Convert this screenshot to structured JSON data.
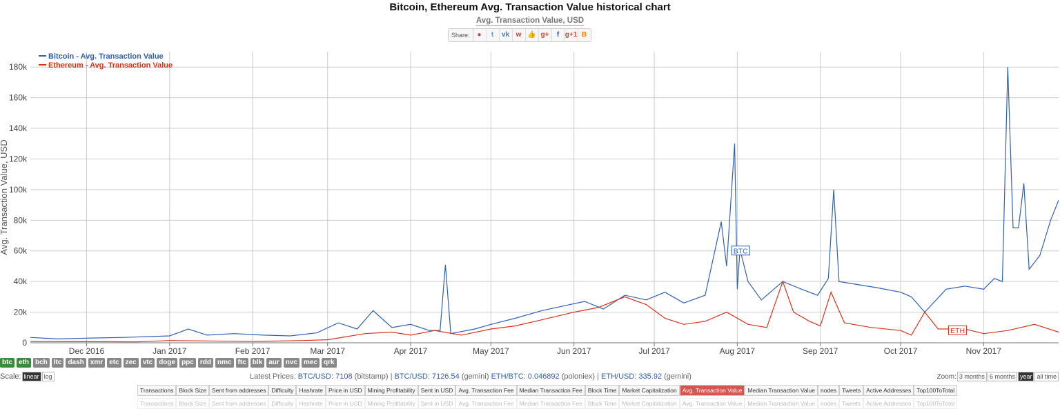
{
  "header": {
    "title": "Bitcoin, Ethereum Avg. Transaction Value historical chart",
    "subtitle": "Avg. Transaction Value, USD",
    "share_label": "Share:",
    "share_icons": [
      "reddit-icon",
      "twitter-icon",
      "vk-icon",
      "weibo-icon",
      "like-icon",
      "google-plus-icon",
      "facebook-icon",
      "google-plus-one-icon",
      "blogger-icon"
    ],
    "share_glyphs": [
      "●",
      "t",
      "vk",
      "w",
      "👍",
      "g+",
      "f",
      "g+1",
      "B"
    ]
  },
  "chart_data": {
    "type": "line",
    "title": "Bitcoin, Ethereum Avg. Transaction Value historical chart",
    "ylabel": "Avg. Transaction Value, USD",
    "ylim": [
      0,
      190000
    ],
    "xlim": [
      "2016-11-10",
      "2017-11-29"
    ],
    "yticks": [
      0,
      20000,
      40000,
      60000,
      80000,
      100000,
      120000,
      140000,
      160000,
      180000
    ],
    "ytick_labels": [
      "0",
      "20k",
      "40k",
      "60k",
      "80k",
      "100k",
      "120k",
      "140k",
      "160k",
      "180k"
    ],
    "xticks": [
      "2016-12-01",
      "2017-01-01",
      "2017-02-01",
      "2017-03-01",
      "2017-04-01",
      "2017-05-01",
      "2017-06-01",
      "2017-07-01",
      "2017-08-01",
      "2017-09-01",
      "2017-10-01",
      "2017-11-01"
    ],
    "xtick_labels": [
      "Dec 2016",
      "Jan 2017",
      "Feb 2017",
      "Mar 2017",
      "Apr 2017",
      "May 2017",
      "Jun 2017",
      "Jul 2017",
      "Aug 2017",
      "Sep 2017",
      "Oct 2017",
      "Nov 2017"
    ],
    "grid": true,
    "legend_position": "top-left",
    "series": [
      {
        "name": "Bitcoin - Avg. Transaction Value",
        "label": "BTC",
        "color": "#2f5fb3",
        "points": [
          [
            "2016-11-10",
            3500
          ],
          [
            "2016-11-20",
            2500
          ],
          [
            "2016-12-01",
            3000
          ],
          [
            "2016-12-15",
            3500
          ],
          [
            "2017-01-01",
            4500
          ],
          [
            "2017-01-08",
            9000
          ],
          [
            "2017-01-15",
            5000
          ],
          [
            "2017-01-25",
            6000
          ],
          [
            "2017-02-05",
            5000
          ],
          [
            "2017-02-15",
            4500
          ],
          [
            "2017-02-25",
            6500
          ],
          [
            "2017-03-05",
            13000
          ],
          [
            "2017-03-12",
            9000
          ],
          [
            "2017-03-18",
            21000
          ],
          [
            "2017-03-25",
            10000
          ],
          [
            "2017-04-01",
            12000
          ],
          [
            "2017-04-08",
            8000
          ],
          [
            "2017-04-12",
            8000
          ],
          [
            "2017-04-14",
            51000
          ],
          [
            "2017-04-16",
            6000
          ],
          [
            "2017-04-25",
            9000
          ],
          [
            "2017-05-01",
            12000
          ],
          [
            "2017-05-10",
            16000
          ],
          [
            "2017-05-20",
            21000
          ],
          [
            "2017-05-28",
            24000
          ],
          [
            "2017-06-05",
            27000
          ],
          [
            "2017-06-12",
            22000
          ],
          [
            "2017-06-20",
            31000
          ],
          [
            "2017-06-28",
            28000
          ],
          [
            "2017-07-05",
            33000
          ],
          [
            "2017-07-12",
            26000
          ],
          [
            "2017-07-20",
            31000
          ],
          [
            "2017-07-26",
            79000
          ],
          [
            "2017-07-28",
            50000
          ],
          [
            "2017-07-31",
            130000
          ],
          [
            "2017-08-01",
            35000
          ],
          [
            "2017-08-02",
            61000
          ],
          [
            "2017-08-05",
            40000
          ],
          [
            "2017-08-10",
            28000
          ],
          [
            "2017-08-18",
            40000
          ],
          [
            "2017-08-25",
            35000
          ],
          [
            "2017-08-31",
            31000
          ],
          [
            "2017-09-04",
            42000
          ],
          [
            "2017-09-06",
            100000
          ],
          [
            "2017-09-08",
            40000
          ],
          [
            "2017-09-15",
            38000
          ],
          [
            "2017-09-22",
            36000
          ],
          [
            "2017-10-01",
            33000
          ],
          [
            "2017-10-05",
            30000
          ],
          [
            "2017-10-10",
            20000
          ],
          [
            "2017-10-18",
            35000
          ],
          [
            "2017-10-25",
            37000
          ],
          [
            "2017-11-01",
            35000
          ],
          [
            "2017-11-05",
            42000
          ],
          [
            "2017-11-08",
            40000
          ],
          [
            "2017-11-10",
            180000
          ],
          [
            "2017-11-12",
            75000
          ],
          [
            "2017-11-14",
            75000
          ],
          [
            "2017-11-16",
            104000
          ],
          [
            "2017-11-18",
            48000
          ],
          [
            "2017-11-22",
            57000
          ],
          [
            "2017-11-26",
            80000
          ],
          [
            "2017-11-29",
            93000
          ]
        ]
      },
      {
        "name": "Ethereum - Avg. Transaction Value",
        "label": "ETH",
        "color": "#d9301c",
        "points": [
          [
            "2016-11-10",
            800
          ],
          [
            "2016-12-01",
            700
          ],
          [
            "2016-12-20",
            600
          ],
          [
            "2017-01-01",
            1500
          ],
          [
            "2017-01-15",
            1200
          ],
          [
            "2017-02-01",
            800
          ],
          [
            "2017-02-20",
            1500
          ],
          [
            "2017-03-01",
            2000
          ],
          [
            "2017-03-15",
            6000
          ],
          [
            "2017-03-25",
            7000
          ],
          [
            "2017-04-01",
            5000
          ],
          [
            "2017-04-10",
            8000
          ],
          [
            "2017-04-20",
            5000
          ],
          [
            "2017-05-01",
            9000
          ],
          [
            "2017-05-10",
            11000
          ],
          [
            "2017-05-20",
            15000
          ],
          [
            "2017-06-01",
            20000
          ],
          [
            "2017-06-10",
            23000
          ],
          [
            "2017-06-20",
            30000
          ],
          [
            "2017-06-28",
            25000
          ],
          [
            "2017-07-05",
            16000
          ],
          [
            "2017-07-12",
            12000
          ],
          [
            "2017-07-20",
            14000
          ],
          [
            "2017-07-28",
            20000
          ],
          [
            "2017-08-05",
            12000
          ],
          [
            "2017-08-12",
            10000
          ],
          [
            "2017-08-18",
            40000
          ],
          [
            "2017-08-22",
            20000
          ],
          [
            "2017-08-28",
            14000
          ],
          [
            "2017-09-01",
            11000
          ],
          [
            "2017-09-05",
            33000
          ],
          [
            "2017-09-10",
            13000
          ],
          [
            "2017-09-20",
            10000
          ],
          [
            "2017-10-01",
            8000
          ],
          [
            "2017-10-05",
            5000
          ],
          [
            "2017-10-10",
            20000
          ],
          [
            "2017-10-15",
            9000
          ],
          [
            "2017-10-25",
            9000
          ],
          [
            "2017-11-01",
            6000
          ],
          [
            "2017-11-10",
            8000
          ],
          [
            "2017-11-20",
            12000
          ],
          [
            "2017-11-29",
            7000
          ]
        ]
      }
    ]
  },
  "coins": [
    {
      "label": "btc",
      "active": true
    },
    {
      "label": "eth",
      "active": true
    },
    {
      "label": "bch",
      "active": false
    },
    {
      "label": "ltc",
      "active": false
    },
    {
      "label": "dash",
      "active": false
    },
    {
      "label": "xmr",
      "active": false
    },
    {
      "label": "etc",
      "active": false
    },
    {
      "label": "zec",
      "active": false
    },
    {
      "label": "vtc",
      "active": false
    },
    {
      "label": "doge",
      "active": false
    },
    {
      "label": "ppc",
      "active": false
    },
    {
      "label": "rdd",
      "active": false
    },
    {
      "label": "nmc",
      "active": false
    },
    {
      "label": "ftc",
      "active": false
    },
    {
      "label": "blk",
      "active": false
    },
    {
      "label": "aur",
      "active": false
    },
    {
      "label": "nvc",
      "active": false
    },
    {
      "label": "mec",
      "active": false
    },
    {
      "label": "qrk",
      "active": false
    }
  ],
  "scale": {
    "label": "Scale:",
    "linear": "linear",
    "log": "log"
  },
  "prices": {
    "label": "Latest Prices:",
    "btc_usd_label": "BTC/USD:",
    "btc_usd": "7108",
    "btc_usd_src": "(bitstamp)",
    "btc_usd2_label": "BTC/USD:",
    "btc_usd2": "7126.54",
    "btc_usd2_src": "(gemini)",
    "eth_btc_label": "ETH/BTC:",
    "eth_btc": "0.046892",
    "eth_btc_src": "(poloniex)",
    "eth_usd_label": "ETH/USD:",
    "eth_usd": "335.92",
    "eth_usd_src": "(gemini)"
  },
  "zoom": {
    "label": "Zoom:",
    "options": [
      "3 months",
      "6 months",
      "year",
      "all time"
    ],
    "active": "year"
  },
  "metrics": {
    "items": [
      "Transactions",
      "Block Size",
      "Sent from addresses",
      "Difficulty",
      "Hashrate",
      "Price in USD",
      "Mining Profitability",
      "Sent in USD",
      "Avg. Transaction Fee",
      "Median Transaction Fee",
      "Block Time",
      "Market Capitalization",
      "Avg. Transaction Value",
      "Median Transaction Value",
      "nodes",
      "Tweets",
      "Active Addresses",
      "Top100ToTotal"
    ],
    "active": "Avg. Transaction Value"
  }
}
